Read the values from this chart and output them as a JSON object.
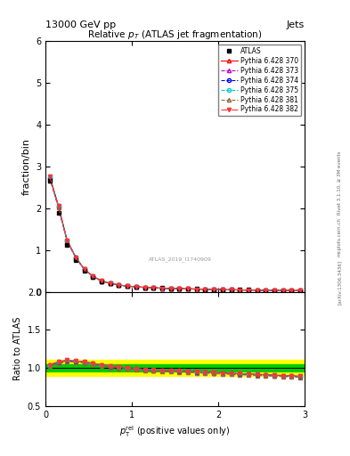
{
  "title_top": "13000 GeV pp",
  "title_right": "Jets",
  "plot_title": "Relative $p_T$ (ATLAS jet fragmentation)",
  "ylabel_main": "fraction/bin",
  "ylabel_ratio": "Ratio to ATLAS",
  "right_label": "Rivet 3.1.10, ≥ 3M events",
  "arxiv_label": "[arXiv:1306.3436]",
  "mcplots_label": "mcplots.cern.ch",
  "watermark": "ATLAS_2019_I1740909",
  "xlim": [
    0,
    3
  ],
  "ylim_main": [
    0,
    6
  ],
  "ylim_ratio": [
    0.5,
    2
  ],
  "yticks_main": [
    0,
    1,
    2,
    3,
    4,
    5,
    6
  ],
  "yticks_ratio": [
    0.5,
    1,
    1.5,
    2
  ],
  "xticks": [
    0,
    1,
    2,
    3
  ],
  "atlas_x": [
    0.05,
    0.15,
    0.25,
    0.35,
    0.45,
    0.55,
    0.65,
    0.75,
    0.85,
    0.95,
    1.05,
    1.15,
    1.25,
    1.35,
    1.45,
    1.55,
    1.65,
    1.75,
    1.85,
    1.95,
    2.05,
    2.15,
    2.25,
    2.35,
    2.45,
    2.55,
    2.65,
    2.75,
    2.85,
    2.95
  ],
  "atlas_y": [
    2.65,
    1.9,
    1.12,
    0.76,
    0.5,
    0.35,
    0.25,
    0.2,
    0.16,
    0.14,
    0.12,
    0.11,
    0.1,
    0.09,
    0.085,
    0.08,
    0.075,
    0.07,
    0.065,
    0.06,
    0.055,
    0.052,
    0.05,
    0.048,
    0.045,
    0.043,
    0.04,
    0.038,
    0.036,
    0.034
  ],
  "pythia_370_color": "#ff0000",
  "pythia_373_color": "#cc00cc",
  "pythia_374_color": "#0000ff",
  "pythia_375_color": "#00cccc",
  "pythia_381_color": "#996633",
  "pythia_382_color": "#ff3333",
  "band_color_outer": "#ffff00",
  "band_color_inner": "#00cc00",
  "ratio_370": [
    1.04,
    1.08,
    1.1,
    1.09,
    1.08,
    1.06,
    1.04,
    1.02,
    1.01,
    1.0,
    0.99,
    0.98,
    0.975,
    0.97,
    0.965,
    0.96,
    0.955,
    0.95,
    0.945,
    0.94,
    0.935,
    0.93,
    0.925,
    0.92,
    0.915,
    0.91,
    0.905,
    0.9,
    0.895,
    0.89
  ],
  "ratio_373": [
    1.03,
    1.07,
    1.09,
    1.085,
    1.075,
    1.055,
    1.035,
    1.015,
    1.005,
    0.995,
    0.985,
    0.975,
    0.97,
    0.965,
    0.96,
    0.955,
    0.95,
    0.945,
    0.94,
    0.935,
    0.93,
    0.925,
    0.92,
    0.915,
    0.91,
    0.905,
    0.9,
    0.895,
    0.89,
    0.885
  ],
  "ratio_374": [
    1.03,
    1.07,
    1.09,
    1.085,
    1.075,
    1.055,
    1.035,
    1.015,
    1.005,
    0.995,
    0.985,
    0.975,
    0.97,
    0.965,
    0.96,
    0.955,
    0.95,
    0.945,
    0.94,
    0.935,
    0.93,
    0.925,
    0.92,
    0.915,
    0.91,
    0.905,
    0.9,
    0.895,
    0.89,
    0.885
  ],
  "ratio_375": [
    1.04,
    1.08,
    1.1,
    1.09,
    1.08,
    1.06,
    1.04,
    1.02,
    1.01,
    1.0,
    0.99,
    0.98,
    0.975,
    0.97,
    0.965,
    0.96,
    0.955,
    0.95,
    0.945,
    0.94,
    0.935,
    0.93,
    0.925,
    0.92,
    0.915,
    0.91,
    0.905,
    0.9,
    0.895,
    0.89
  ],
  "ratio_381": [
    1.02,
    1.06,
    1.08,
    1.075,
    1.065,
    1.045,
    1.025,
    1.005,
    0.995,
    0.985,
    0.975,
    0.965,
    0.96,
    0.955,
    0.95,
    0.945,
    0.94,
    0.935,
    0.93,
    0.925,
    0.92,
    0.915,
    0.91,
    0.905,
    0.9,
    0.895,
    0.89,
    0.885,
    0.88,
    0.875
  ],
  "ratio_382": [
    1.04,
    1.08,
    1.1,
    1.09,
    1.08,
    1.06,
    1.04,
    1.02,
    1.01,
    1.0,
    0.99,
    0.98,
    0.975,
    0.97,
    0.965,
    0.96,
    0.955,
    0.95,
    0.945,
    0.94,
    0.935,
    0.93,
    0.925,
    0.92,
    0.915,
    0.91,
    0.905,
    0.9,
    0.895,
    0.89
  ]
}
